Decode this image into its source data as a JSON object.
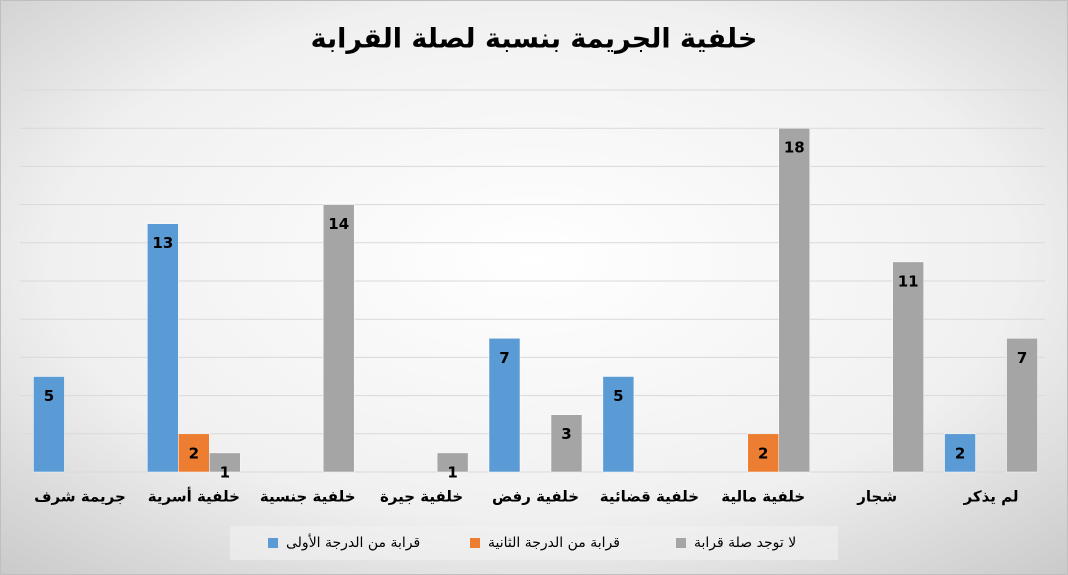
{
  "chart_data": {
    "type": "bar",
    "title": "خلفية الجريمة بنسبة لصلة القرابة",
    "categories": [
      "جريمة شرف",
      "خلفية أسرية",
      "خلفية جنسية",
      "خلفية جيرة",
      "خلفية رفض",
      "خلفية قضائية",
      "خلفية مالية",
      "شجار",
      "لم يذكر"
    ],
    "series": [
      {
        "name": "قرابة من الدرجة الأولى",
        "color": "#5b9bd5",
        "values": [
          5,
          13,
          null,
          null,
          7,
          5,
          null,
          null,
          2
        ]
      },
      {
        "name": "قرابة من الدرجة الثانية",
        "color": "#ed7d31",
        "values": [
          null,
          2,
          null,
          null,
          null,
          null,
          2,
          null,
          null
        ]
      },
      {
        "name": "لا توجد صلة قرابة",
        "color": "#a5a5a5",
        "values": [
          null,
          1,
          14,
          1,
          3,
          null,
          18,
          11,
          7
        ]
      }
    ],
    "ylim": [
      0,
      20
    ],
    "yticks": [
      0,
      2,
      4,
      6,
      8,
      10,
      12,
      14,
      16,
      18,
      20
    ],
    "grid": true,
    "legend": "bottom"
  }
}
